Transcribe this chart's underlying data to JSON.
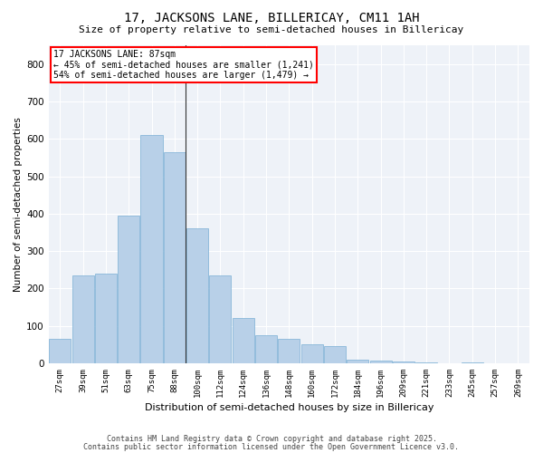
{
  "title_line1": "17, JACKSONS LANE, BILLERICAY, CM11 1AH",
  "title_line2": "Size of property relative to semi-detached houses in Billericay",
  "xlabel": "Distribution of semi-detached houses by size in Billericay",
  "ylabel": "Number of semi-detached properties",
  "categories": [
    "27sqm",
    "39sqm",
    "51sqm",
    "63sqm",
    "75sqm",
    "88sqm",
    "100sqm",
    "112sqm",
    "124sqm",
    "136sqm",
    "148sqm",
    "160sqm",
    "172sqm",
    "184sqm",
    "196sqm",
    "209sqm",
    "221sqm",
    "233sqm",
    "245sqm",
    "257sqm",
    "269sqm"
  ],
  "values": [
    65,
    235,
    240,
    395,
    610,
    565,
    360,
    235,
    120,
    75,
    65,
    50,
    45,
    10,
    8,
    5,
    3,
    0,
    3,
    0,
    0
  ],
  "bar_color": "#b8d0e8",
  "bar_edge_color": "#7aafd4",
  "annotation_title": "17 JACKSONS LANE: 87sqm",
  "annotation_line2": "← 45% of semi-detached houses are smaller (1,241)",
  "annotation_line3": "54% of semi-detached houses are larger (1,479) →",
  "vline_index": 5,
  "ylim": [
    0,
    850
  ],
  "yticks": [
    0,
    100,
    200,
    300,
    400,
    500,
    600,
    700,
    800
  ],
  "footer_line1": "Contains HM Land Registry data © Crown copyright and database right 2025.",
  "footer_line2": "Contains public sector information licensed under the Open Government Licence v3.0.",
  "bg_color": "#eef2f8"
}
